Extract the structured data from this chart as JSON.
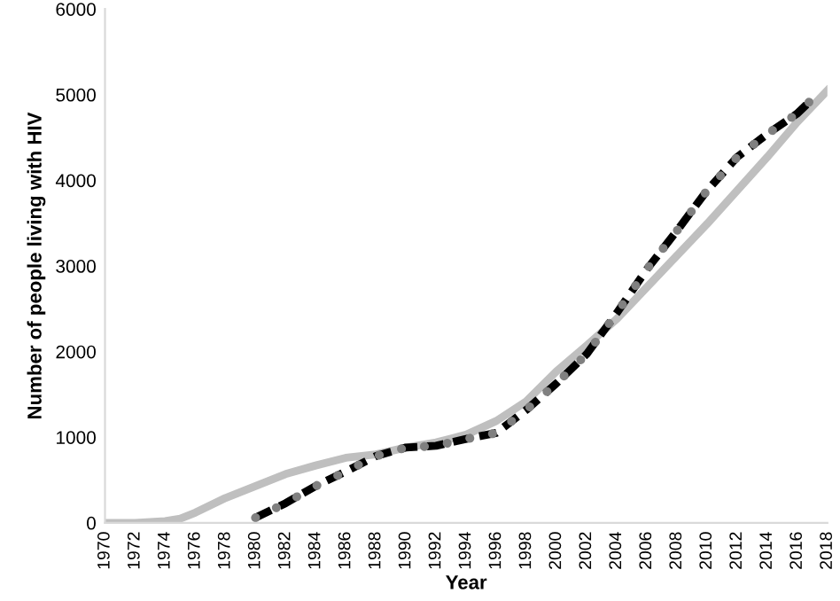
{
  "chart_data": {
    "type": "line",
    "xlabel": "Year",
    "ylabel": "Number of people living with HIV",
    "xlim": [
      1970,
      2018
    ],
    "xticks": [
      1970,
      1972,
      1974,
      1976,
      1978,
      1980,
      1982,
      1984,
      1986,
      1988,
      1990,
      1992,
      1994,
      1996,
      1998,
      2000,
      2002,
      2004,
      2006,
      2008,
      2010,
      2012,
      2014,
      2016,
      2018
    ],
    "ylim": [
      0,
      6000
    ],
    "yticks": [
      0,
      1000,
      2000,
      3000,
      4000,
      5000,
      6000
    ],
    "grid": false,
    "legend": false,
    "series": [
      {
        "color": "#bfbfbf",
        "line_style": "solid",
        "x": [
          1970,
          1972,
          1974,
          1975,
          1976,
          1978,
          1980,
          1982,
          1984,
          1986,
          1988,
          1990,
          1992,
          1994,
          1996,
          1998,
          2000,
          2002,
          2004,
          2006,
          2008,
          2010,
          2012,
          2014,
          2016,
          2018
        ],
        "values": [
          0,
          0,
          20,
          50,
          120,
          290,
          430,
          570,
          670,
          760,
          800,
          880,
          940,
          1030,
          1190,
          1420,
          1770,
          2070,
          2380,
          2750,
          3120,
          3490,
          3880,
          4270,
          4680,
          5050
        ]
      },
      {
        "color": "#000000",
        "line_style": "dashed",
        "x": [
          1980,
          1982,
          1984,
          1986,
          1988,
          1990,
          1992,
          1994,
          1996,
          1998,
          2000,
          2002,
          2004,
          2006,
          2008,
          2010,
          2012,
          2014,
          2016,
          2017
        ],
        "values": [
          60,
          230,
          430,
          600,
          780,
          880,
          900,
          980,
          1050,
          1320,
          1630,
          1970,
          2450,
          2960,
          3410,
          3880,
          4270,
          4540,
          4780,
          4950
        ]
      },
      {
        "color": "#808080",
        "line_style": "dotted",
        "x": [
          1980,
          1982,
          1984,
          1986,
          1988,
          1990,
          1992,
          1994,
          1996,
          1998,
          2000,
          2002,
          2004,
          2006,
          2008,
          2010,
          2012,
          2014,
          2016,
          2017
        ],
        "values": [
          60,
          230,
          430,
          600,
          780,
          880,
          900,
          980,
          1050,
          1320,
          1630,
          1970,
          2450,
          2960,
          3410,
          3880,
          4270,
          4540,
          4780,
          4950
        ]
      }
    ]
  }
}
